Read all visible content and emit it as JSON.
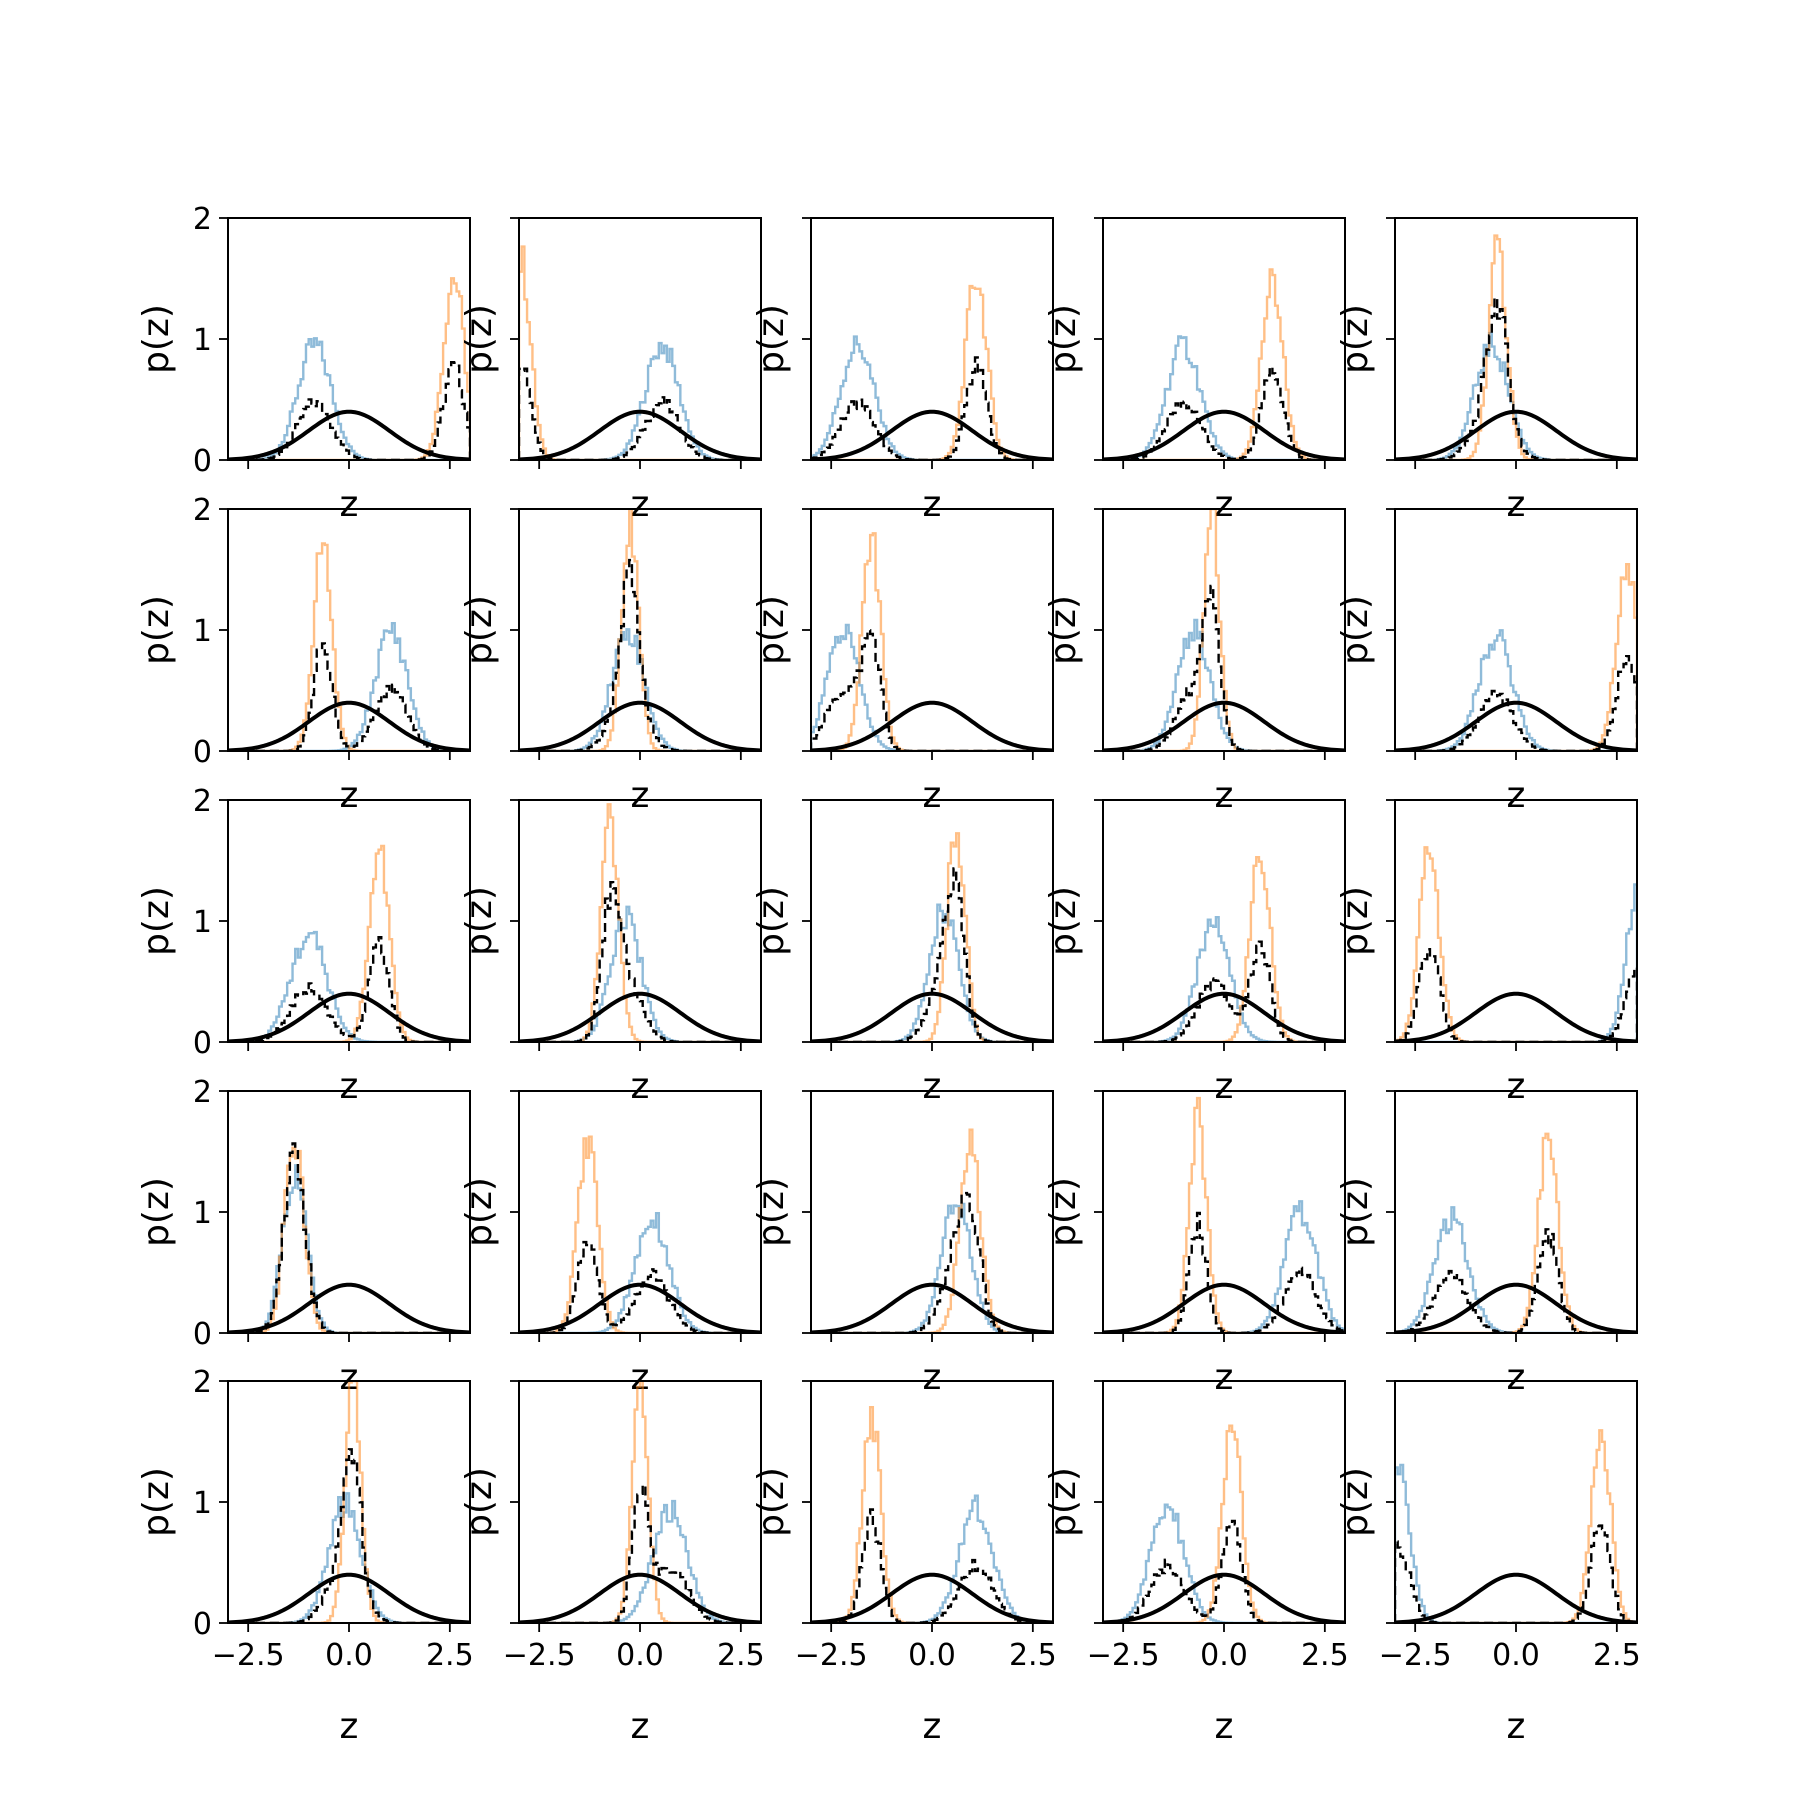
{
  "figure": {
    "xlabel": "z",
    "ylabel": "p(z)",
    "xlim": [
      -3.0,
      3.0
    ],
    "ylim": [
      0,
      2
    ],
    "xticks": [
      -2.5,
      0.0,
      2.5
    ],
    "xtick_labels": [
      "−2.5",
      "0.0",
      "2.5"
    ],
    "yticks": [
      0,
      1,
      2
    ],
    "ytick_labels": [
      "0",
      "1",
      "2"
    ],
    "colors": {
      "blue_hist": "#1f77b4",
      "orange_hist": "#ff7f0e",
      "mixture_dashed": "#000000",
      "prior_curve": "#000000"
    },
    "grid": false,
    "legend": "none"
  },
  "chart_data": [
    {
      "type": "histogram",
      "row": 0,
      "col": 0,
      "blue": {
        "mu": -0.85,
        "sigma": 0.42
      },
      "orange": {
        "mu": 2.6,
        "sigma": 0.26
      },
      "prior": {
        "mu": 0,
        "sigma": 1
      }
    },
    {
      "type": "histogram",
      "row": 0,
      "col": 1,
      "blue": {
        "mu": 0.55,
        "sigma": 0.42
      },
      "orange": {
        "mu": -2.95,
        "sigma": 0.24
      },
      "prior": {
        "mu": 0,
        "sigma": 1
      }
    },
    {
      "type": "histogram",
      "row": 0,
      "col": 2,
      "blue": {
        "mu": -1.85,
        "sigma": 0.42
      },
      "orange": {
        "mu": 1.1,
        "sigma": 0.26
      },
      "prior": {
        "mu": 0,
        "sigma": 1
      }
    },
    {
      "type": "histogram",
      "row": 0,
      "col": 3,
      "blue": {
        "mu": -1.0,
        "sigma": 0.42
      },
      "orange": {
        "mu": 1.2,
        "sigma": 0.27
      },
      "prior": {
        "mu": 0,
        "sigma": 1
      }
    },
    {
      "type": "histogram",
      "row": 0,
      "col": 4,
      "blue": {
        "mu": -0.6,
        "sigma": 0.42
      },
      "orange": {
        "mu": -0.45,
        "sigma": 0.23
      },
      "prior": {
        "mu": 0,
        "sigma": 1
      }
    },
    {
      "type": "histogram",
      "row": 1,
      "col": 0,
      "blue": {
        "mu": 1.05,
        "sigma": 0.4
      },
      "orange": {
        "mu": -0.65,
        "sigma": 0.23
      },
      "prior": {
        "mu": 0,
        "sigma": 1
      }
    },
    {
      "type": "histogram",
      "row": 1,
      "col": 1,
      "blue": {
        "mu": -0.3,
        "sigma": 0.4
      },
      "orange": {
        "mu": -0.25,
        "sigma": 0.21
      },
      "prior": {
        "mu": 0,
        "sigma": 1
      }
    },
    {
      "type": "histogram",
      "row": 1,
      "col": 2,
      "blue": {
        "mu": -2.2,
        "sigma": 0.4
      },
      "orange": {
        "mu": -1.5,
        "sigma": 0.23
      },
      "prior": {
        "mu": 0,
        "sigma": 1
      }
    },
    {
      "type": "histogram",
      "row": 1,
      "col": 3,
      "blue": {
        "mu": -0.75,
        "sigma": 0.4
      },
      "orange": {
        "mu": -0.3,
        "sigma": 0.2
      },
      "prior": {
        "mu": 0,
        "sigma": 1
      }
    },
    {
      "type": "histogram",
      "row": 1,
      "col": 4,
      "blue": {
        "mu": -0.5,
        "sigma": 0.42
      },
      "orange": {
        "mu": 2.75,
        "sigma": 0.26
      },
      "prior": {
        "mu": 0,
        "sigma": 1
      }
    },
    {
      "type": "histogram",
      "row": 2,
      "col": 0,
      "blue": {
        "mu": -1.0,
        "sigma": 0.45
      },
      "orange": {
        "mu": 0.75,
        "sigma": 0.25
      },
      "prior": {
        "mu": 0,
        "sigma": 1
      }
    },
    {
      "type": "histogram",
      "row": 2,
      "col": 1,
      "blue": {
        "mu": -0.35,
        "sigma": 0.38
      },
      "orange": {
        "mu": -0.75,
        "sigma": 0.22
      },
      "prior": {
        "mu": 0,
        "sigma": 1
      }
    },
    {
      "type": "histogram",
      "row": 2,
      "col": 2,
      "blue": {
        "mu": 0.3,
        "sigma": 0.36
      },
      "orange": {
        "mu": 0.6,
        "sigma": 0.22
      },
      "prior": {
        "mu": 0,
        "sigma": 1
      }
    },
    {
      "type": "histogram",
      "row": 2,
      "col": 3,
      "blue": {
        "mu": -0.25,
        "sigma": 0.4
      },
      "orange": {
        "mu": 0.9,
        "sigma": 0.25
      },
      "prior": {
        "mu": 0,
        "sigma": 1
      }
    },
    {
      "type": "histogram",
      "row": 2,
      "col": 4,
      "blue": {
        "mu": 3.05,
        "sigma": 0.3
      },
      "orange": {
        "mu": -2.15,
        "sigma": 0.25
      },
      "prior": {
        "mu": 0,
        "sigma": 1
      }
    },
    {
      "type": "histogram",
      "row": 3,
      "col": 0,
      "blue": {
        "mu": -1.35,
        "sigma": 0.3
      },
      "orange": {
        "mu": -1.35,
        "sigma": 0.24
      },
      "prior": {
        "mu": 0,
        "sigma": 1
      }
    },
    {
      "type": "histogram",
      "row": 3,
      "col": 1,
      "blue": {
        "mu": 0.3,
        "sigma": 0.42
      },
      "orange": {
        "mu": -1.3,
        "sigma": 0.25
      },
      "prior": {
        "mu": 0,
        "sigma": 1
      }
    },
    {
      "type": "histogram",
      "row": 3,
      "col": 2,
      "blue": {
        "mu": 0.6,
        "sigma": 0.36
      },
      "orange": {
        "mu": 0.95,
        "sigma": 0.26
      },
      "prior": {
        "mu": 0,
        "sigma": 1
      }
    },
    {
      "type": "histogram",
      "row": 3,
      "col": 3,
      "blue": {
        "mu": 1.9,
        "sigma": 0.4
      },
      "orange": {
        "mu": -0.65,
        "sigma": 0.22
      },
      "prior": {
        "mu": 0,
        "sigma": 1
      }
    },
    {
      "type": "histogram",
      "row": 3,
      "col": 4,
      "blue": {
        "mu": -1.6,
        "sigma": 0.42
      },
      "orange": {
        "mu": 0.8,
        "sigma": 0.25
      },
      "prior": {
        "mu": 0,
        "sigma": 1
      }
    },
    {
      "type": "histogram",
      "row": 4,
      "col": 0,
      "blue": {
        "mu": -0.1,
        "sigma": 0.4
      },
      "orange": {
        "mu": 0.1,
        "sigma": 0.2
      },
      "prior": {
        "mu": 0,
        "sigma": 1
      }
    },
    {
      "type": "histogram",
      "row": 4,
      "col": 1,
      "blue": {
        "mu": 0.75,
        "sigma": 0.43
      },
      "orange": {
        "mu": 0.0,
        "sigma": 0.2
      },
      "prior": {
        "mu": 0,
        "sigma": 1
      }
    },
    {
      "type": "histogram",
      "row": 4,
      "col": 2,
      "blue": {
        "mu": 1.1,
        "sigma": 0.42
      },
      "orange": {
        "mu": -1.5,
        "sigma": 0.23
      },
      "prior": {
        "mu": 0,
        "sigma": 1
      }
    },
    {
      "type": "histogram",
      "row": 4,
      "col": 3,
      "blue": {
        "mu": -1.4,
        "sigma": 0.42
      },
      "orange": {
        "mu": 0.2,
        "sigma": 0.24
      },
      "prior": {
        "mu": 0,
        "sigma": 1
      }
    },
    {
      "type": "histogram",
      "row": 4,
      "col": 4,
      "blue": {
        "mu": -2.95,
        "sigma": 0.3
      },
      "orange": {
        "mu": 2.1,
        "sigma": 0.24
      },
      "prior": {
        "mu": 0,
        "sigma": 1
      }
    }
  ]
}
